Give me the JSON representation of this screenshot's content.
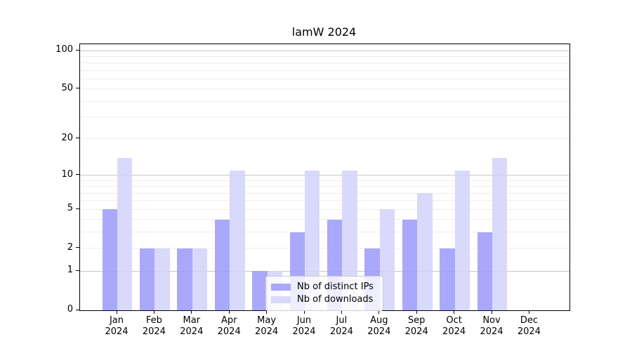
{
  "chart_data": {
    "type": "bar",
    "title": "lamW 2024",
    "categories": [
      "Jan 2024",
      "Feb 2024",
      "Mar 2024",
      "Apr 2024",
      "May 2024",
      "Jun 2024",
      "Jul 2024",
      "Aug 2024",
      "Sep 2024",
      "Oct 2024",
      "Nov 2024",
      "Dec 2024"
    ],
    "x_tick_line1": [
      "Jan",
      "Feb",
      "Mar",
      "Apr",
      "May",
      "Jun",
      "Jul",
      "Aug",
      "Sep",
      "Oct",
      "Nov",
      "Dec"
    ],
    "x_tick_line2": "2024",
    "series": [
      {
        "name": "Nb of distinct IPs",
        "color": "#aaa8fa",
        "fill": "rgba(158,156,250,0.88)",
        "values": [
          5,
          2,
          2,
          4,
          1,
          3,
          4,
          2,
          4,
          2,
          3,
          0
        ]
      },
      {
        "name": "Nb of downloads",
        "color": "#d9d9fa",
        "fill": "rgba(212,212,250,0.88)",
        "values": [
          14,
          2,
          2,
          11,
          1,
          11,
          11,
          5,
          7,
          11,
          14,
          0
        ]
      }
    ],
    "yscale": "log1p",
    "ylim": [
      0,
      112
    ],
    "y_ticks": [
      0,
      1,
      2,
      5,
      10,
      20,
      50,
      100
    ],
    "grid": {
      "major": [
        1,
        10,
        100
      ],
      "minor": [
        2,
        3,
        4,
        5,
        6,
        7,
        8,
        9,
        20,
        30,
        40,
        50,
        60,
        70,
        80,
        90
      ],
      "major_color": "#c6c6c6",
      "minor_color": "#ededed"
    },
    "legend_position": "lower center",
    "xlabel": "",
    "ylabel": ""
  }
}
